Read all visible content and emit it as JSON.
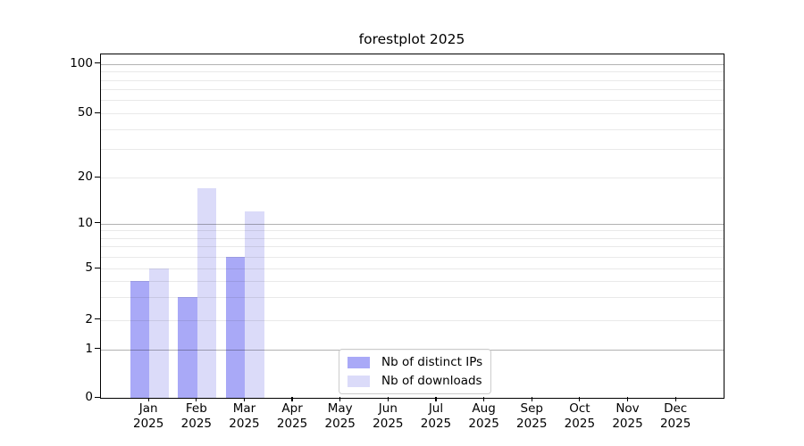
{
  "chart_data": {
    "type": "bar",
    "title": "forestplot 2025",
    "categories": [
      "Jan 2025",
      "Feb 2025",
      "Mar 2025",
      "Apr 2025",
      "May 2025",
      "Jun 2025",
      "Jul 2025",
      "Aug 2025",
      "Sep 2025",
      "Oct 2025",
      "Nov 2025",
      "Dec 2025"
    ],
    "x_tick_month": [
      "Jan",
      "Feb",
      "Mar",
      "Apr",
      "May",
      "Jun",
      "Jul",
      "Aug",
      "Sep",
      "Oct",
      "Nov",
      "Dec"
    ],
    "x_tick_year": "2025",
    "series": [
      {
        "name": "Nb of distinct IPs",
        "color": "#a9a9f7",
        "values": [
          4,
          3,
          6,
          0,
          0,
          0,
          0,
          0,
          0,
          0,
          0,
          0
        ]
      },
      {
        "name": "Nb of downloads",
        "color": "#dbdbf9",
        "values": [
          5,
          17,
          12,
          0,
          0,
          0,
          0,
          0,
          0,
          0,
          0,
          0
        ]
      }
    ],
    "y_axis": {
      "scale": "log above 1, linear 0-1",
      "ticks": [
        0,
        1,
        2,
        5,
        10,
        20,
        50,
        100
      ],
      "minor_gridlines": [
        3,
        4,
        6,
        7,
        8,
        9,
        30,
        40,
        60,
        70,
        80,
        90
      ],
      "emphasized_gridlines": [
        1,
        10,
        100
      ],
      "ylim": [
        0,
        114
      ]
    },
    "grid": true,
    "legend_position": "lower center inside axes",
    "xlabel": "",
    "ylabel": ""
  },
  "legend": {
    "items": [
      {
        "label": "Nb of distinct IPs",
        "color": "#a9a9f7"
      },
      {
        "label": "Nb of downloads",
        "color": "#dbdbf9"
      }
    ]
  },
  "colors": {
    "background": "#ffffff",
    "bar_distinct_ips": "#a9a9f7",
    "bar_downloads": "#dbdbf9",
    "grid_light": "#e9e9e9",
    "grid_emphasized": "#b3b3b3",
    "axis": "#000000",
    "text": "#000000",
    "legend_border": "#cccccc"
  }
}
